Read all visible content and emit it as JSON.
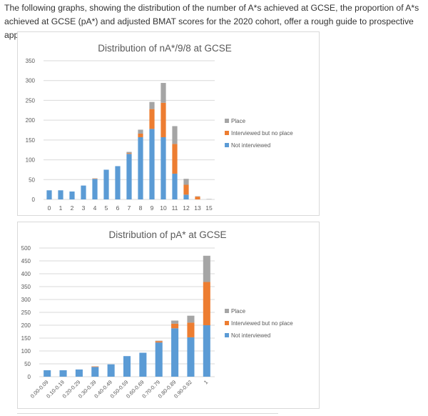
{
  "intro_text": "The following graphs, showing the distribution of the number of A*s achieved at GCSE, the proportion of A*s achieved at GCSE (pA*) and adjusted BMAT scores for the 2020 cohort, offer a rough guide to prospective applicants.",
  "colors": {
    "not_interviewed": "#5B9BD5",
    "interviewed": "#ED7D31",
    "place": "#A5A5A5",
    "grid": "#d9d9d9",
    "axis_text": "#595959",
    "title": "#595959"
  },
  "chart_data": [
    {
      "type": "bar",
      "stacked": true,
      "title": "Distribution of nA*/9/8 at GCSE",
      "categories": [
        "0",
        "1",
        "2",
        "3",
        "4",
        "5",
        "6",
        "7",
        "8",
        "9",
        "10",
        "11",
        "12",
        "13",
        "15"
      ],
      "ylim": [
        0,
        350
      ],
      "yticks": [
        0,
        50,
        100,
        150,
        200,
        250,
        300,
        350
      ],
      "grid": true,
      "legend_position": "right",
      "series": [
        {
          "name": "Not interviewed",
          "values": [
            23,
            23,
            20,
            35,
            52,
            75,
            84,
            115,
            157,
            178,
            157,
            65,
            12,
            0,
            0
          ]
        },
        {
          "name": "Interviewed but no place",
          "values": [
            0,
            0,
            0,
            0,
            1,
            0,
            0,
            2,
            9,
            50,
            87,
            75,
            25,
            7,
            0
          ]
        },
        {
          "name": "Place",
          "values": [
            0,
            0,
            0,
            0,
            0,
            0,
            0,
            3,
            10,
            18,
            50,
            45,
            15,
            1,
            1
          ]
        }
      ]
    },
    {
      "type": "bar",
      "stacked": true,
      "title": "Distribution of pA* at GCSE",
      "categories": [
        "0.00-0.09",
        "0.10-0.19",
        "0.20-0.29",
        "0.30-0.39",
        "0.40-0.49",
        "0.50-0.59",
        "0.60-0.69",
        "0.70-0.79",
        "0.80-0.89",
        "0.90-0.92",
        "1"
      ],
      "ylim": [
        0,
        500
      ],
      "yticks": [
        0,
        50,
        100,
        150,
        200,
        250,
        300,
        350,
        400,
        450,
        500
      ],
      "grid": true,
      "legend_position": "right",
      "series": [
        {
          "name": "Not interviewed",
          "values": [
            25,
            25,
            28,
            38,
            48,
            80,
            93,
            133,
            188,
            153,
            200
          ]
        },
        {
          "name": "Interviewed but no place",
          "values": [
            0,
            0,
            0,
            2,
            0,
            0,
            0,
            5,
            18,
            57,
            168
          ]
        },
        {
          "name": "Place",
          "values": [
            0,
            0,
            0,
            0,
            0,
            0,
            0,
            2,
            12,
            27,
            102
          ]
        }
      ]
    }
  ]
}
